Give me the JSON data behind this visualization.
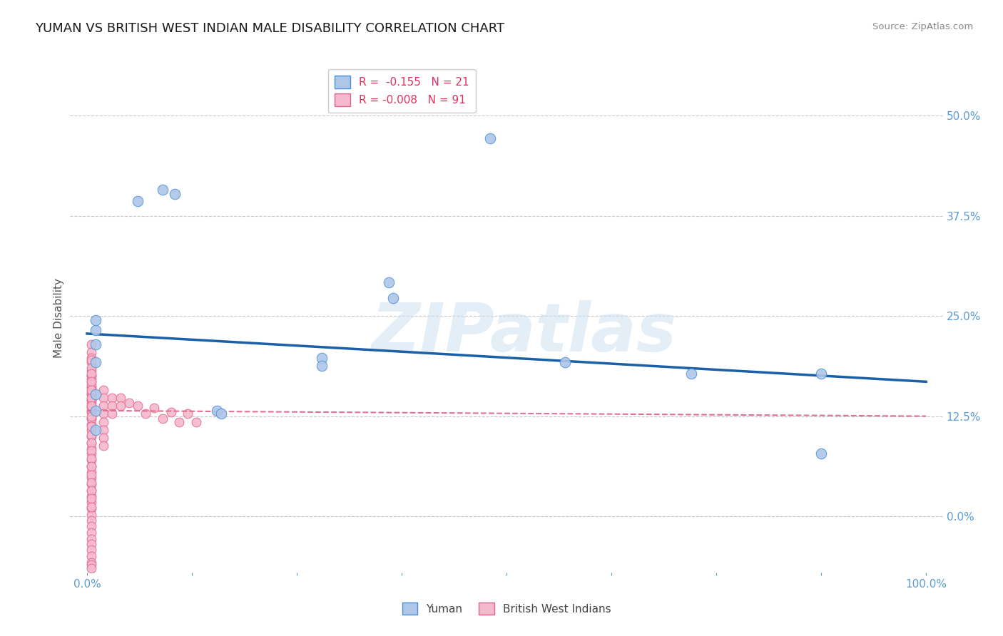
{
  "title": "YUMAN VS BRITISH WEST INDIAN MALE DISABILITY CORRELATION CHART",
  "source": "Source: ZipAtlas.com",
  "ylabel": "Male Disability",
  "xlim": [
    -0.02,
    1.02
  ],
  "ylim": [
    -0.07,
    0.565
  ],
  "yticks": [
    0.0,
    0.125,
    0.25,
    0.375,
    0.5
  ],
  "ytick_labels": [
    "0.0%",
    "12.5%",
    "25.0%",
    "37.5%",
    "50.0%"
  ],
  "xticks": [
    0.0,
    0.125,
    0.25,
    0.375,
    0.5,
    0.625,
    0.75,
    0.875,
    1.0
  ],
  "xtick_labels_show": [
    "0.0%",
    "",
    "",
    "",
    "",
    "",
    "",
    "",
    "100.0%"
  ],
  "legend_R1": "R =  -0.155",
  "legend_N1": "N = 21",
  "legend_R2": "R = -0.008",
  "legend_N2": "N = 91",
  "background_color": "#ffffff",
  "grid_color": "#c8c8c8",
  "watermark": "ZIPatlas",
  "yuman_color": "#aec6e8",
  "yuman_edge_color": "#4a90d9",
  "bwi_color": "#f5b8cc",
  "bwi_edge_color": "#e06688",
  "blue_line_color": "#1a5fa8",
  "pink_line_color": "#e07090",
  "yuman_scatter_x": [
    0.01,
    0.06,
    0.09,
    0.105,
    0.01,
    0.01,
    0.01,
    0.48,
    0.36,
    0.365,
    0.28,
    0.28,
    0.57,
    0.72,
    0.875,
    0.875,
    0.01,
    0.01,
    0.01,
    0.155,
    0.16
  ],
  "yuman_scatter_y": [
    0.232,
    0.393,
    0.408,
    0.402,
    0.245,
    0.215,
    0.192,
    0.472,
    0.292,
    0.272,
    0.198,
    0.188,
    0.192,
    0.178,
    0.178,
    0.078,
    0.152,
    0.132,
    0.108,
    0.132,
    0.128
  ],
  "bwi_scatter_x": [
    0.005,
    0.005,
    0.005,
    0.005,
    0.005,
    0.005,
    0.005,
    0.005,
    0.005,
    0.005,
    0.005,
    0.005,
    0.005,
    0.005,
    0.005,
    0.005,
    0.005,
    0.005,
    0.005,
    0.005,
    0.005,
    0.005,
    0.005,
    0.005,
    0.005,
    0.005,
    0.005,
    0.005,
    0.005,
    0.005,
    0.005,
    0.005,
    0.005,
    0.005,
    0.005,
    0.005,
    0.005,
    0.005,
    0.005,
    0.005,
    0.005,
    0.005,
    0.005,
    0.005,
    0.005,
    0.005,
    0.005,
    0.005,
    0.005,
    0.005,
    0.005,
    0.005,
    0.005,
    0.005,
    0.005,
    0.005,
    0.005,
    0.005,
    0.005,
    0.005,
    0.005,
    0.005,
    0.02,
    0.02,
    0.02,
    0.02,
    0.02,
    0.02,
    0.02,
    0.02,
    0.03,
    0.03,
    0.03,
    0.04,
    0.04,
    0.05,
    0.06,
    0.07,
    0.08,
    0.09,
    0.1,
    0.11,
    0.12,
    0.13,
    0.005,
    0.005,
    0.005,
    0.005,
    0.005,
    0.005,
    0.005
  ],
  "bwi_scatter_y": [
    0.215,
    0.205,
    0.198,
    0.192,
    0.182,
    0.175,
    0.168,
    0.16,
    0.152,
    0.145,
    0.138,
    0.13,
    0.122,
    0.115,
    0.108,
    0.1,
    0.092,
    0.085,
    0.078,
    0.07,
    0.062,
    0.055,
    0.048,
    0.04,
    0.032,
    0.025,
    0.018,
    0.01,
    0.002,
    -0.005,
    -0.012,
    -0.02,
    -0.028,
    -0.035,
    -0.042,
    -0.05,
    -0.058,
    -0.06,
    -0.065,
    0.172,
    0.162,
    0.152,
    0.142,
    0.132,
    0.122,
    0.112,
    0.102,
    0.092,
    0.082,
    0.072,
    0.062,
    0.052,
    0.042,
    0.032,
    0.022,
    0.012,
    0.175,
    0.165,
    0.155,
    0.145,
    0.135,
    0.125,
    0.158,
    0.148,
    0.138,
    0.128,
    0.118,
    0.108,
    0.098,
    0.088,
    0.148,
    0.138,
    0.128,
    0.148,
    0.138,
    0.142,
    0.138,
    0.128,
    0.135,
    0.122,
    0.13,
    0.118,
    0.128,
    0.118,
    0.195,
    0.185,
    0.178,
    0.168,
    0.158,
    0.148,
    0.138
  ],
  "blue_trend_x": [
    0.0,
    1.0
  ],
  "blue_trend_y": [
    0.228,
    0.168
  ],
  "pink_trend_x": [
    0.0,
    1.0
  ],
  "pink_trend_y": [
    0.132,
    0.125
  ]
}
